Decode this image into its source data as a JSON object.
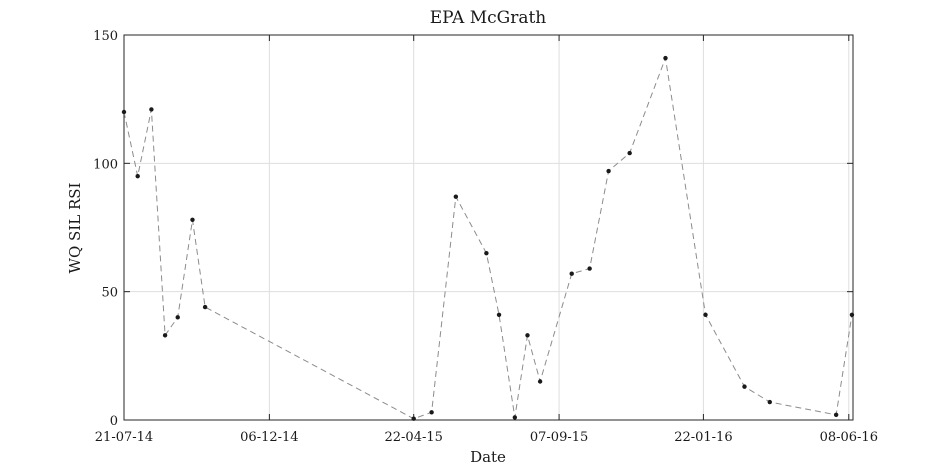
{
  "chart_data": {
    "type": "line",
    "title": "EPA McGrath",
    "xlabel": "Date",
    "ylabel": "WQ SIL RSI",
    "ylim": [
      0,
      150
    ],
    "xlim": [
      "2014-07-21",
      "2016-06-12"
    ],
    "y_ticks": [
      "0",
      "50",
      "100",
      "150"
    ],
    "x_ticks": [
      {
        "date": "2014-07-21",
        "label": "21-07-14"
      },
      {
        "date": "2014-12-06",
        "label": "06-12-14"
      },
      {
        "date": "2015-04-22",
        "label": "22-04-15"
      },
      {
        "date": "2015-09-07",
        "label": "07-09-15"
      },
      {
        "date": "2016-01-22",
        "label": "22-01-16"
      },
      {
        "date": "2016-06-08",
        "label": "08-06-16"
      }
    ],
    "grid": true,
    "line_color": "#8c8c8c",
    "marker_color": "#1a1a1a",
    "series": [
      {
        "points": [
          {
            "x": "2014-07-21",
            "y": 120
          },
          {
            "x": "2014-08-03",
            "y": 95
          },
          {
            "x": "2014-08-16",
            "y": 121
          },
          {
            "x": "2014-08-29",
            "y": 33
          },
          {
            "x": "2014-09-10",
            "y": 40
          },
          {
            "x": "2014-09-24",
            "y": 78
          },
          {
            "x": "2014-10-06",
            "y": 44
          },
          {
            "x": "2015-04-22",
            "y": 0.5
          },
          {
            "x": "2015-05-09",
            "y": 3
          },
          {
            "x": "2015-06-01",
            "y": 87
          },
          {
            "x": "2015-06-30",
            "y": 65
          },
          {
            "x": "2015-07-12",
            "y": 41
          },
          {
            "x": "2015-07-27",
            "y": 1
          },
          {
            "x": "2015-08-08",
            "y": 33
          },
          {
            "x": "2015-08-20",
            "y": 15
          },
          {
            "x": "2015-09-19",
            "y": 57
          },
          {
            "x": "2015-10-06",
            "y": 59
          },
          {
            "x": "2015-10-24",
            "y": 97
          },
          {
            "x": "2015-11-13",
            "y": 104
          },
          {
            "x": "2015-12-17",
            "y": 141
          },
          {
            "x": "2016-01-24",
            "y": 41
          },
          {
            "x": "2016-03-01",
            "y": 13
          },
          {
            "x": "2016-03-25",
            "y": 7
          },
          {
            "x": "2016-05-27",
            "y": 2
          },
          {
            "x": "2016-06-11",
            "y": 41
          }
        ]
      }
    ]
  }
}
